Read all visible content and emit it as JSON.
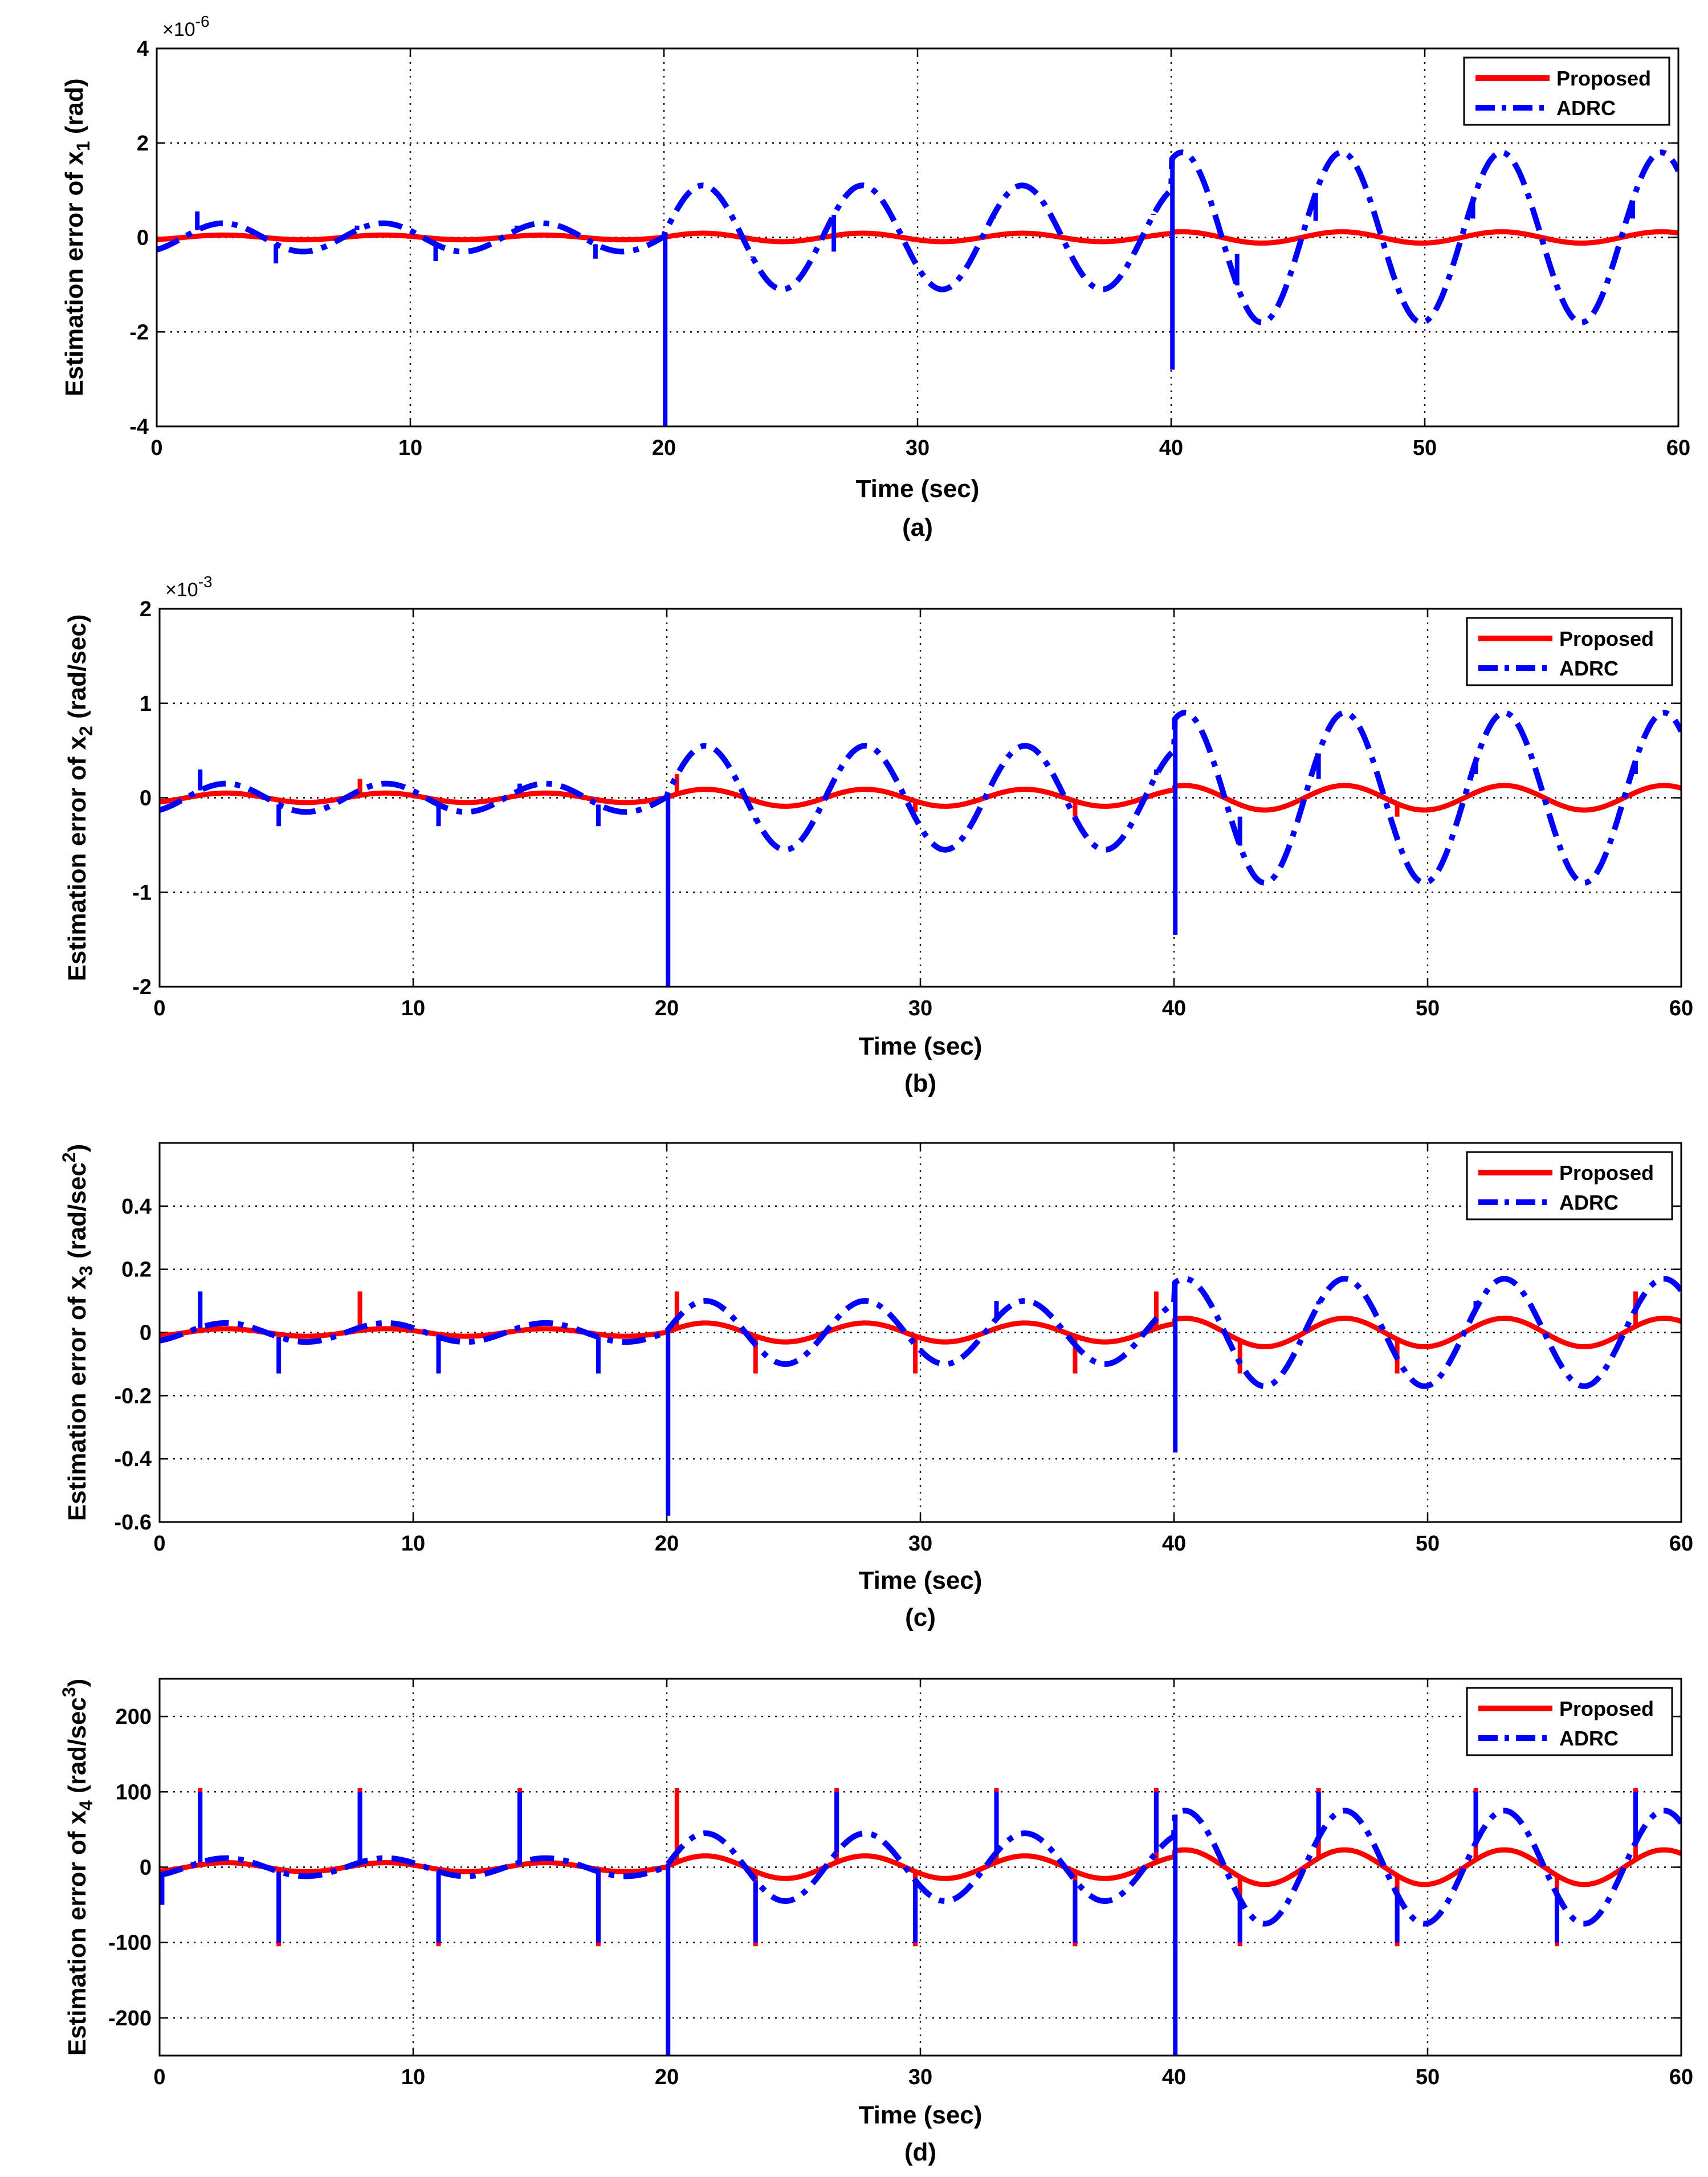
{
  "chart_data": [
    {
      "type": "line",
      "panel_label": "(a)",
      "ylabel_pre": "Estimation error of x",
      "ylabel_sub": "1",
      "ylabel_post": " (rad)",
      "xlabel": "Time (sec)",
      "exponent_text": "×10",
      "exponent_power": "-6",
      "xlim": [
        0,
        60
      ],
      "ylim": [
        -4,
        4
      ],
      "xticks": [
        0,
        10,
        20,
        30,
        40,
        50,
        60
      ],
      "yticks": [
        -4,
        -2,
        0,
        2,
        4
      ],
      "yticklabels": [
        "-4",
        "-2",
        "0",
        "2",
        "4"
      ],
      "grid": true,
      "legend_position": "top-right",
      "series": [
        {
          "name": "Proposed",
          "color": "#ff0000",
          "style": "solid",
          "segments": [
            {
              "t_start": 0,
              "t_end": 20,
              "amplitude": 0.05,
              "phase_deg": -60
            },
            {
              "t_start": 20,
              "t_end": 40,
              "amplitude": 0.09,
              "phase_deg": -60
            },
            {
              "t_start": 40,
              "t_end": 60,
              "amplitude": 0.12,
              "phase_deg": -60
            }
          ],
          "spikes": []
        },
        {
          "name": "ADRC",
          "color": "#0000ff",
          "style": "dashdot",
          "segments": [
            {
              "t_start": 0,
              "t_end": 20,
              "amplitude": 0.3,
              "phase_deg": -60
            },
            {
              "t_start": 20,
              "t_end": 40,
              "amplitude": 1.1,
              "phase_deg": -60
            },
            {
              "t_start": 40,
              "t_end": 60,
              "amplitude": 1.8,
              "phase_deg": -60
            }
          ],
          "spikes": [
            {
              "t": 1.6,
              "y": 0.55
            },
            {
              "t": 4.7,
              "y": -0.55
            },
            {
              "t": 7.9,
              "y": 0.25
            },
            {
              "t": 11.0,
              "y": -0.5
            },
            {
              "t": 14.2,
              "y": 0.25
            },
            {
              "t": 17.3,
              "y": -0.45
            },
            {
              "t": 20.05,
              "y": -4
            },
            {
              "t": 23.5,
              "y": -0.4
            },
            {
              "t": 26.7,
              "y": -0.3
            },
            {
              "t": 33.0,
              "y": 0.4
            },
            {
              "t": 39.3,
              "y": 0.5
            },
            {
              "t": 40.05,
              "y": -2.8
            },
            {
              "t": 42.6,
              "y": -0.35
            },
            {
              "t": 45.7,
              "y": 0.35
            },
            {
              "t": 51.9,
              "y": 0.4
            },
            {
              "t": 58.2,
              "y": 0.4
            }
          ]
        }
      ]
    },
    {
      "type": "line",
      "panel_label": "(b)",
      "ylabel_pre": "Estimation error of x",
      "ylabel_sub": "2",
      "ylabel_post": " (rad/sec)",
      "xlabel": "Time (sec)",
      "exponent_text": "×10",
      "exponent_power": "-3",
      "xlim": [
        0,
        60
      ],
      "ylim": [
        -2,
        2
      ],
      "xticks": [
        0,
        10,
        20,
        30,
        40,
        50,
        60
      ],
      "yticks": [
        -2,
        -1,
        0,
        1,
        2
      ],
      "yticklabels": [
        "-2",
        "-1",
        "0",
        "1",
        "2"
      ],
      "grid": true,
      "legend_position": "top-right",
      "series": [
        {
          "name": "Proposed",
          "color": "#ff0000",
          "style": "solid",
          "segments": [
            {
              "t_start": 0,
              "t_end": 20,
              "amplitude": 0.05,
              "phase_deg": -60
            },
            {
              "t_start": 20,
              "t_end": 40,
              "amplitude": 0.09,
              "phase_deg": -60
            },
            {
              "t_start": 40,
              "t_end": 60,
              "amplitude": 0.13,
              "phase_deg": -60
            }
          ],
          "spikes": [
            {
              "t": 7.9,
              "y": 0.2
            },
            {
              "t": 20.4,
              "y": 0.25
            },
            {
              "t": 29.8,
              "y": -0.15
            },
            {
              "t": 36.1,
              "y": -0.2
            },
            {
              "t": 48.8,
              "y": -0.2
            }
          ]
        },
        {
          "name": "ADRC",
          "color": "#0000ff",
          "style": "dashdot",
          "segments": [
            {
              "t_start": 0,
              "t_end": 20,
              "amplitude": 0.15,
              "phase_deg": -60
            },
            {
              "t_start": 20,
              "t_end": 40,
              "amplitude": 0.55,
              "phase_deg": -60
            },
            {
              "t_start": 40,
              "t_end": 60,
              "amplitude": 0.9,
              "phase_deg": -60
            }
          ],
          "spikes": [
            {
              "t": 1.6,
              "y": 0.3
            },
            {
              "t": 4.7,
              "y": -0.3
            },
            {
              "t": 11.0,
              "y": -0.3
            },
            {
              "t": 14.2,
              "y": 0.15
            },
            {
              "t": 17.3,
              "y": -0.3
            },
            {
              "t": 20.05,
              "y": -2
            },
            {
              "t": 23.5,
              "y": -0.25
            },
            {
              "t": 33.0,
              "y": 0.25
            },
            {
              "t": 39.3,
              "y": 0.3
            },
            {
              "t": 40.05,
              "y": -1.45
            },
            {
              "t": 42.6,
              "y": -0.2
            },
            {
              "t": 45.7,
              "y": 0.2
            },
            {
              "t": 51.9,
              "y": 0.25
            },
            {
              "t": 58.2,
              "y": 0.25
            }
          ]
        }
      ]
    },
    {
      "type": "line",
      "panel_label": "(c)",
      "ylabel_pre": "Estimation error of x",
      "ylabel_sub": "3",
      "ylabel_post": " (rad/sec",
      "ylabel_sup": "2",
      "ylabel_close": ")",
      "xlabel": "Time (sec)",
      "exponent_text": "",
      "exponent_power": "",
      "xlim": [
        0,
        60
      ],
      "ylim": [
        -0.6,
        0.6
      ],
      "xticks": [
        0,
        10,
        20,
        30,
        40,
        50,
        60
      ],
      "yticks": [
        -0.6,
        -0.4,
        -0.2,
        0,
        0.2,
        0.4
      ],
      "yticklabels": [
        "-0.6",
        "-0.4",
        "-0.2",
        "0",
        "0.2",
        "0.4"
      ],
      "grid": true,
      "legend_position": "top-right",
      "series": [
        {
          "name": "Proposed",
          "color": "#ff0000",
          "style": "solid",
          "segments": [
            {
              "t_start": 0,
              "t_end": 20,
              "amplitude": 0.012,
              "phase_deg": -60
            },
            {
              "t_start": 20,
              "t_end": 40,
              "amplitude": 0.03,
              "phase_deg": -60
            },
            {
              "t_start": 40,
              "t_end": 60,
              "amplitude": 0.045,
              "phase_deg": -60
            }
          ],
          "spikes": [
            {
              "t": 1.6,
              "y": 0.13
            },
            {
              "t": 7.9,
              "y": 0.13
            },
            {
              "t": 20.4,
              "y": 0.13
            },
            {
              "t": 23.5,
              "y": -0.13
            },
            {
              "t": 29.8,
              "y": -0.13
            },
            {
              "t": 36.1,
              "y": -0.13
            },
            {
              "t": 39.3,
              "y": 0.13
            },
            {
              "t": 42.6,
              "y": -0.13
            },
            {
              "t": 48.8,
              "y": -0.13
            },
            {
              "t": 58.2,
              "y": 0.13
            }
          ]
        },
        {
          "name": "ADRC",
          "color": "#0000ff",
          "style": "dashdot",
          "segments": [
            {
              "t_start": 0,
              "t_end": 20,
              "amplitude": 0.03,
              "phase_deg": -60
            },
            {
              "t_start": 20,
              "t_end": 40,
              "amplitude": 0.1,
              "phase_deg": -60
            },
            {
              "t_start": 40,
              "t_end": 60,
              "amplitude": 0.17,
              "phase_deg": -60
            }
          ],
          "spikes": [
            {
              "t": 1.6,
              "y": 0.13
            },
            {
              "t": 4.7,
              "y": -0.13
            },
            {
              "t": 11.0,
              "y": -0.13
            },
            {
              "t": 17.3,
              "y": -0.13
            },
            {
              "t": 20.05,
              "y": -0.58
            },
            {
              "t": 33.0,
              "y": 0.1
            },
            {
              "t": 40.05,
              "y": -0.38
            },
            {
              "t": 45.7,
              "y": 0.1
            },
            {
              "t": 51.9,
              "y": 0.1
            }
          ]
        }
      ]
    },
    {
      "type": "line",
      "panel_label": "(d)",
      "ylabel_pre": "Estimation error of x",
      "ylabel_sub": "4",
      "ylabel_post": " (rad/sec",
      "ylabel_sup": "3",
      "ylabel_close": ")",
      "xlabel": "Time (sec)",
      "exponent_text": "",
      "exponent_power": "",
      "xlim": [
        0,
        60
      ],
      "ylim": [
        -250,
        250
      ],
      "xticks": [
        0,
        10,
        20,
        30,
        40,
        50,
        60
      ],
      "yticks": [
        -200,
        -100,
        0,
        100,
        200
      ],
      "yticklabels": [
        "-200",
        "-100",
        "0",
        "100",
        "200"
      ],
      "grid": true,
      "legend_position": "top-right",
      "series": [
        {
          "name": "Proposed",
          "color": "#ff0000",
          "style": "solid",
          "segments": [
            {
              "t_start": 0,
              "t_end": 20,
              "amplitude": 6,
              "phase_deg": -60
            },
            {
              "t_start": 20,
              "t_end": 40,
              "amplitude": 15,
              "phase_deg": -60
            },
            {
              "t_start": 40,
              "t_end": 60,
              "amplitude": 23,
              "phase_deg": -60
            }
          ],
          "spikes": [
            {
              "t": 1.6,
              "y": 105
            },
            {
              "t": 4.7,
              "y": -105
            },
            {
              "t": 7.9,
              "y": 105
            },
            {
              "t": 11.0,
              "y": -105
            },
            {
              "t": 14.2,
              "y": 105
            },
            {
              "t": 17.3,
              "y": -105
            },
            {
              "t": 20.4,
              "y": 105
            },
            {
              "t": 23.5,
              "y": -105
            },
            {
              "t": 26.7,
              "y": 105
            },
            {
              "t": 29.8,
              "y": -105
            },
            {
              "t": 33.0,
              "y": 105
            },
            {
              "t": 36.1,
              "y": -105
            },
            {
              "t": 39.3,
              "y": 105
            },
            {
              "t": 42.6,
              "y": -105
            },
            {
              "t": 45.7,
              "y": 105
            },
            {
              "t": 48.8,
              "y": -105
            },
            {
              "t": 51.9,
              "y": 105
            },
            {
              "t": 55.1,
              "y": -105
            },
            {
              "t": 58.2,
              "y": 105
            }
          ]
        },
        {
          "name": "ADRC",
          "color": "#0000ff",
          "style": "dashdot",
          "segments": [
            {
              "t_start": 0,
              "t_end": 20,
              "amplitude": 12,
              "phase_deg": -60
            },
            {
              "t_start": 20,
              "t_end": 40,
              "amplitude": 45,
              "phase_deg": -60
            },
            {
              "t_start": 40,
              "t_end": 60,
              "amplitude": 75,
              "phase_deg": -60
            }
          ],
          "spikes": [
            {
              "t": 0.1,
              "y": -50
            },
            {
              "t": 1.6,
              "y": 100
            },
            {
              "t": 4.7,
              "y": -100
            },
            {
              "t": 7.9,
              "y": 100
            },
            {
              "t": 11.0,
              "y": -100
            },
            {
              "t": 14.2,
              "y": 100
            },
            {
              "t": 17.3,
              "y": -100
            },
            {
              "t": 20.05,
              "y": -250
            },
            {
              "t": 23.5,
              "y": -100
            },
            {
              "t": 26.7,
              "y": 100
            },
            {
              "t": 29.8,
              "y": -100
            },
            {
              "t": 33.0,
              "y": 100
            },
            {
              "t": 36.1,
              "y": -100
            },
            {
              "t": 39.3,
              "y": 100
            },
            {
              "t": 40.05,
              "y": -250
            },
            {
              "t": 42.6,
              "y": -100
            },
            {
              "t": 45.7,
              "y": 100
            },
            {
              "t": 48.8,
              "y": -100
            },
            {
              "t": 51.9,
              "y": 100
            },
            {
              "t": 55.1,
              "y": -100
            },
            {
              "t": 58.2,
              "y": 100
            }
          ]
        }
      ]
    }
  ]
}
